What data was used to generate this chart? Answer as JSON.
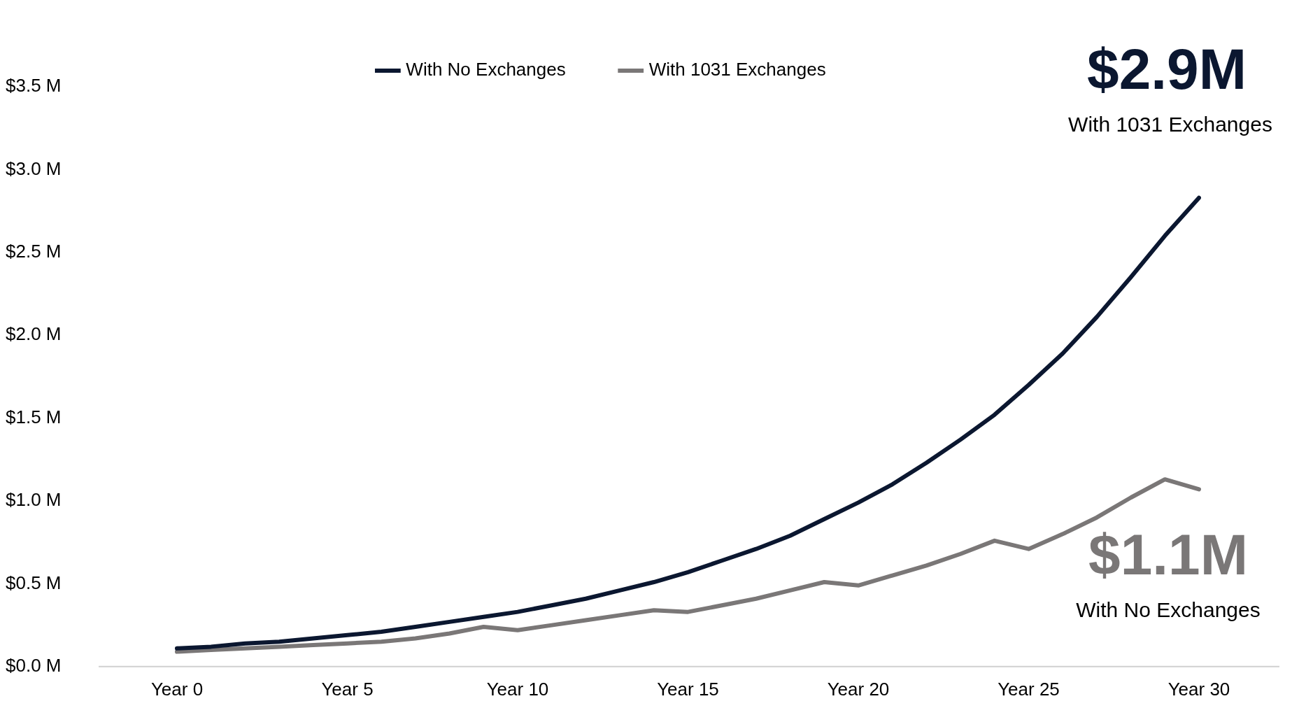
{
  "chart_data": {
    "type": "line",
    "categories": [
      "Year 0",
      null,
      null,
      null,
      null,
      "Year 5",
      null,
      null,
      null,
      null,
      "Year 10",
      null,
      null,
      null,
      null,
      "Year 15",
      null,
      null,
      null,
      null,
      "Year 20",
      null,
      null,
      null,
      null,
      "Year 25",
      null,
      null,
      null,
      null,
      "Year 30"
    ],
    "series": [
      {
        "name": "With No Exchanges",
        "color": "#0b1730",
        "values": [
          0.11,
          0.12,
          0.14,
          0.15,
          0.17,
          0.19,
          0.21,
          0.24,
          0.27,
          0.3,
          0.33,
          0.37,
          0.41,
          0.46,
          0.51,
          0.57,
          0.64,
          0.71,
          0.79,
          0.89,
          0.99,
          1.1,
          1.23,
          1.37,
          1.52,
          1.7,
          1.89,
          2.11,
          2.35,
          2.6,
          2.83
        ]
      },
      {
        "name": "With 1031 Exchanges",
        "color": "#7a7777",
        "values": [
          0.09,
          0.1,
          0.11,
          0.12,
          0.13,
          0.14,
          0.15,
          0.17,
          0.2,
          0.24,
          0.22,
          0.25,
          0.28,
          0.31,
          0.34,
          0.33,
          0.37,
          0.41,
          0.46,
          0.51,
          0.49,
          0.55,
          0.61,
          0.68,
          0.76,
          0.71,
          0.8,
          0.9,
          1.02,
          1.13,
          1.07
        ]
      }
    ],
    "ylim": [
      0,
      3.5
    ],
    "yticks": [
      {
        "value": 0,
        "label": "$0.0 M"
      },
      {
        "value": 0.5,
        "label": "$0.5 M"
      },
      {
        "value": 1,
        "label": "$1.0 M"
      },
      {
        "value": 1.5,
        "label": "$1.5 M"
      },
      {
        "value": 2,
        "label": "$2.0 M"
      },
      {
        "value": 2.5,
        "label": "$2.5 M"
      },
      {
        "value": 3,
        "label": "$3.0 M"
      },
      {
        "value": 3.5,
        "label": "$3.5 M"
      }
    ],
    "annotations": [
      "$2.9M",
      "With 1031 Exchanges",
      "$1.1M",
      "With No Exchanges"
    ],
    "legend": "top",
    "grid": false,
    "marker": "none",
    "line_style": "solid"
  }
}
